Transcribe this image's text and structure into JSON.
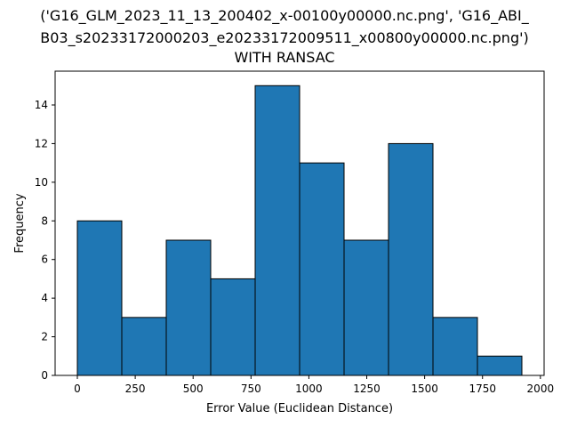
{
  "chart_data": {
    "type": "bar",
    "title_lines": [
      "('G16_GLM_2023_11_13_200402_x-00100y00000.nc.png', 'G16_ABI_",
      "B03_s20233172000203_e20233172009511_x00800y00000.nc.png')",
      "WITH RANSAC"
    ],
    "xlabel": "Error Value (Euclidean Distance)",
    "ylabel": "Frequency",
    "bin_edges": [
      0,
      192,
      384,
      576,
      768,
      960,
      1152,
      1344,
      1536,
      1728,
      1920
    ],
    "values": [
      8,
      3,
      7,
      5,
      15,
      11,
      7,
      12,
      3,
      1
    ],
    "xlim": [
      -96,
      2016
    ],
    "ylim": [
      0,
      15.75
    ],
    "xticks": [
      0,
      250,
      500,
      750,
      1000,
      1250,
      1500,
      1750,
      2000
    ],
    "yticks": [
      0,
      2,
      4,
      6,
      8,
      10,
      12,
      14
    ],
    "bar_color": "#1f77b4",
    "edge_color": "#000000",
    "grid": false,
    "legend": "none"
  }
}
